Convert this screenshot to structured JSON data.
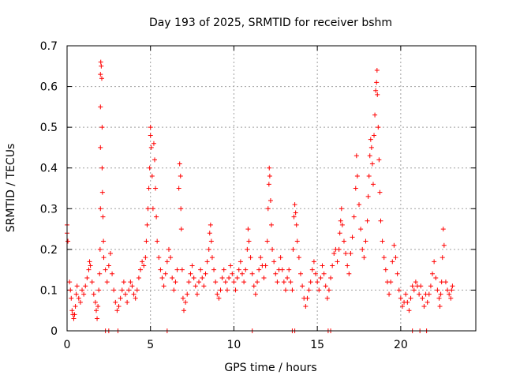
{
  "chart_data": {
    "type": "scatter",
    "title": "Day 193 of 2025, SRMTID for receiver bshm",
    "xlabel": "GPS time / hours",
    "ylabel": "SRMTID / TECUs",
    "xlim": [
      0,
      24.5
    ],
    "ylim": [
      0,
      0.7
    ],
    "x_ticks": [
      0,
      5,
      10,
      15,
      20
    ],
    "x_tick_labels": [
      "0",
      "5",
      "10",
      "15",
      "20"
    ],
    "y_ticks": [
      0,
      0.1,
      0.2,
      0.3,
      0.4,
      0.5,
      0.6,
      0.7
    ],
    "y_tick_labels": [
      "0",
      "0.1",
      "0.2",
      "0.3",
      "0.4",
      "0.5",
      "0.6",
      "0.7"
    ],
    "grid": true,
    "marker": "+",
    "color": "#ff0000",
    "series": [
      {
        "name": "SRMTID",
        "points": [
          [
            0.0,
            0.26
          ],
          [
            0.0,
            0.24
          ],
          [
            0.05,
            0.22
          ],
          [
            0.15,
            0.12
          ],
          [
            0.2,
            0.1
          ],
          [
            0.25,
            0.08
          ],
          [
            0.3,
            0.05
          ],
          [
            0.35,
            0.04
          ],
          [
            0.4,
            0.03
          ],
          [
            0.45,
            0.04
          ],
          [
            0.5,
            0.06
          ],
          [
            0.55,
            0.09
          ],
          [
            0.6,
            0.11
          ],
          [
            0.7,
            0.08
          ],
          [
            0.8,
            0.07
          ],
          [
            0.9,
            0.1
          ],
          [
            1.0,
            0.09
          ],
          [
            1.1,
            0.11
          ],
          [
            1.2,
            0.13
          ],
          [
            1.3,
            0.15
          ],
          [
            1.35,
            0.17
          ],
          [
            1.4,
            0.16
          ],
          [
            1.5,
            0.12
          ],
          [
            1.6,
            0.09
          ],
          [
            1.7,
            0.07
          ],
          [
            1.75,
            0.05
          ],
          [
            1.8,
            0.03
          ],
          [
            1.85,
            0.06
          ],
          [
            1.9,
            0.1
          ],
          [
            1.95,
            0.14
          ],
          [
            1.98,
            0.2
          ],
          [
            2.0,
            0.3
          ],
          [
            2.0,
            0.45
          ],
          [
            2.0,
            0.55
          ],
          [
            2.0,
            0.63
          ],
          [
            2.02,
            0.66
          ],
          [
            2.05,
            0.65
          ],
          [
            2.08,
            0.62
          ],
          [
            2.1,
            0.5
          ],
          [
            2.1,
            0.4
          ],
          [
            2.12,
            0.34
          ],
          [
            2.15,
            0.28
          ],
          [
            2.18,
            0.22
          ],
          [
            2.2,
            0.18
          ],
          [
            2.3,
            0.15
          ],
          [
            2.4,
            0.12
          ],
          [
            2.5,
            0.16
          ],
          [
            2.6,
            0.19
          ],
          [
            2.7,
            0.14
          ],
          [
            2.8,
            0.1
          ],
          [
            2.9,
            0.07
          ],
          [
            3.0,
            0.05
          ],
          [
            3.1,
            0.06
          ],
          [
            3.2,
            0.08
          ],
          [
            3.3,
            0.1
          ],
          [
            3.4,
            0.12
          ],
          [
            3.5,
            0.09
          ],
          [
            3.6,
            0.07
          ],
          [
            3.7,
            0.1
          ],
          [
            3.8,
            0.12
          ],
          [
            3.9,
            0.11
          ],
          [
            4.0,
            0.09
          ],
          [
            4.1,
            0.08
          ],
          [
            4.2,
            0.1
          ],
          [
            4.3,
            0.13
          ],
          [
            4.4,
            0.15
          ],
          [
            4.5,
            0.17
          ],
          [
            4.6,
            0.16
          ],
          [
            4.7,
            0.18
          ],
          [
            4.75,
            0.22
          ],
          [
            4.8,
            0.26
          ],
          [
            4.85,
            0.3
          ],
          [
            4.9,
            0.35
          ],
          [
            4.95,
            0.4
          ],
          [
            5.0,
            0.48
          ],
          [
            5.0,
            0.5
          ],
          [
            5.05,
            0.45
          ],
          [
            5.1,
            0.38
          ],
          [
            5.15,
            0.3
          ],
          [
            5.2,
            0.46
          ],
          [
            5.25,
            0.42
          ],
          [
            5.3,
            0.35
          ],
          [
            5.35,
            0.28
          ],
          [
            5.4,
            0.22
          ],
          [
            5.5,
            0.18
          ],
          [
            5.6,
            0.15
          ],
          [
            5.7,
            0.13
          ],
          [
            5.8,
            0.11
          ],
          [
            5.9,
            0.14
          ],
          [
            6.0,
            0.17
          ],
          [
            6.1,
            0.2
          ],
          [
            6.2,
            0.18
          ],
          [
            6.3,
            0.13
          ],
          [
            6.4,
            0.1
          ],
          [
            6.5,
            0.12
          ],
          [
            6.6,
            0.15
          ],
          [
            6.7,
            0.35
          ],
          [
            6.75,
            0.41
          ],
          [
            6.8,
            0.38
          ],
          [
            6.82,
            0.3
          ],
          [
            6.85,
            0.25
          ],
          [
            6.9,
            0.15
          ],
          [
            6.95,
            0.08
          ],
          [
            7.0,
            0.05
          ],
          [
            7.1,
            0.07
          ],
          [
            7.2,
            0.09
          ],
          [
            7.3,
            0.12
          ],
          [
            7.4,
            0.14
          ],
          [
            7.5,
            0.16
          ],
          [
            7.6,
            0.13
          ],
          [
            7.7,
            0.11
          ],
          [
            7.8,
            0.09
          ],
          [
            7.9,
            0.12
          ],
          [
            8.0,
            0.15
          ],
          [
            8.1,
            0.13
          ],
          [
            8.2,
            0.11
          ],
          [
            8.3,
            0.14
          ],
          [
            8.4,
            0.17
          ],
          [
            8.5,
            0.2
          ],
          [
            8.55,
            0.24
          ],
          [
            8.6,
            0.26
          ],
          [
            8.65,
            0.22
          ],
          [
            8.7,
            0.18
          ],
          [
            8.8,
            0.15
          ],
          [
            8.9,
            0.12
          ],
          [
            9.0,
            0.09
          ],
          [
            9.1,
            0.08
          ],
          [
            9.2,
            0.1
          ],
          [
            9.3,
            0.13
          ],
          [
            9.4,
            0.15
          ],
          [
            9.5,
            0.12
          ],
          [
            9.6,
            0.1
          ],
          [
            9.7,
            0.13
          ],
          [
            9.8,
            0.16
          ],
          [
            9.9,
            0.14
          ],
          [
            10.0,
            0.12
          ],
          [
            10.1,
            0.1
          ],
          [
            10.2,
            0.13
          ],
          [
            10.3,
            0.15
          ],
          [
            10.4,
            0.17
          ],
          [
            10.5,
            0.14
          ],
          [
            10.6,
            0.12
          ],
          [
            10.7,
            0.15
          ],
          [
            10.8,
            0.2
          ],
          [
            10.85,
            0.25
          ],
          [
            10.9,
            0.22
          ],
          [
            11.0,
            0.18
          ],
          [
            11.1,
            0.14
          ],
          [
            11.2,
            0.11
          ],
          [
            11.3,
            0.09
          ],
          [
            11.4,
            0.12
          ],
          [
            11.5,
            0.15
          ],
          [
            11.6,
            0.18
          ],
          [
            11.7,
            0.16
          ],
          [
            11.8,
            0.13
          ],
          [
            11.9,
            0.16
          ],
          [
            12.0,
            0.22
          ],
          [
            12.05,
            0.3
          ],
          [
            12.1,
            0.36
          ],
          [
            12.12,
            0.4
          ],
          [
            12.15,
            0.38
          ],
          [
            12.2,
            0.32
          ],
          [
            12.25,
            0.26
          ],
          [
            12.3,
            0.2
          ],
          [
            12.4,
            0.17
          ],
          [
            12.5,
            0.14
          ],
          [
            12.6,
            0.12
          ],
          [
            12.7,
            0.15
          ],
          [
            12.8,
            0.18
          ],
          [
            12.9,
            0.15
          ],
          [
            13.0,
            0.12
          ],
          [
            13.1,
            0.1
          ],
          [
            13.2,
            0.13
          ],
          [
            13.3,
            0.15
          ],
          [
            13.4,
            0.12
          ],
          [
            13.5,
            0.1
          ],
          [
            13.55,
            0.2
          ],
          [
            13.6,
            0.28
          ],
          [
            13.65,
            0.31
          ],
          [
            13.7,
            0.29
          ],
          [
            13.75,
            0.26
          ],
          [
            13.8,
            0.22
          ],
          [
            13.9,
            0.18
          ],
          [
            14.0,
            0.14
          ],
          [
            14.1,
            0.11
          ],
          [
            14.2,
            0.08
          ],
          [
            14.3,
            0.06
          ],
          [
            14.4,
            0.08
          ],
          [
            14.5,
            0.1
          ],
          [
            14.6,
            0.12
          ],
          [
            14.7,
            0.15
          ],
          [
            14.8,
            0.17
          ],
          [
            14.9,
            0.14
          ],
          [
            15.0,
            0.12
          ],
          [
            15.1,
            0.1
          ],
          [
            15.2,
            0.13
          ],
          [
            15.3,
            0.16
          ],
          [
            15.4,
            0.14
          ],
          [
            15.5,
            0.11
          ],
          [
            15.6,
            0.08
          ],
          [
            15.7,
            0.1
          ],
          [
            15.8,
            0.13
          ],
          [
            15.9,
            0.16
          ],
          [
            16.0,
            0.19
          ],
          [
            16.1,
            0.2
          ],
          [
            16.2,
            0.17
          ],
          [
            16.3,
            0.2
          ],
          [
            16.35,
            0.24
          ],
          [
            16.4,
            0.27
          ],
          [
            16.45,
            0.3
          ],
          [
            16.5,
            0.26
          ],
          [
            16.6,
            0.22
          ],
          [
            16.7,
            0.19
          ],
          [
            16.8,
            0.16
          ],
          [
            16.9,
            0.14
          ],
          [
            17.0,
            0.19
          ],
          [
            17.1,
            0.23
          ],
          [
            17.2,
            0.28
          ],
          [
            17.3,
            0.35
          ],
          [
            17.35,
            0.43
          ],
          [
            17.4,
            0.38
          ],
          [
            17.5,
            0.31
          ],
          [
            17.6,
            0.25
          ],
          [
            17.7,
            0.2
          ],
          [
            17.8,
            0.18
          ],
          [
            17.9,
            0.22
          ],
          [
            18.0,
            0.27
          ],
          [
            18.05,
            0.33
          ],
          [
            18.1,
            0.38
          ],
          [
            18.15,
            0.43
          ],
          [
            18.2,
            0.47
          ],
          [
            18.25,
            0.45
          ],
          [
            18.3,
            0.41
          ],
          [
            18.35,
            0.36
          ],
          [
            18.4,
            0.48
          ],
          [
            18.45,
            0.53
          ],
          [
            18.5,
            0.59
          ],
          [
            18.55,
            0.61
          ],
          [
            18.58,
            0.64
          ],
          [
            18.6,
            0.58
          ],
          [
            18.65,
            0.5
          ],
          [
            18.7,
            0.42
          ],
          [
            18.75,
            0.34
          ],
          [
            18.8,
            0.27
          ],
          [
            18.9,
            0.22
          ],
          [
            19.0,
            0.18
          ],
          [
            19.1,
            0.15
          ],
          [
            19.2,
            0.12
          ],
          [
            19.3,
            0.09
          ],
          [
            19.4,
            0.12
          ],
          [
            19.5,
            0.17
          ],
          [
            19.6,
            0.21
          ],
          [
            19.7,
            0.18
          ],
          [
            19.8,
            0.14
          ],
          [
            19.9,
            0.1
          ],
          [
            20.0,
            0.08
          ],
          [
            20.1,
            0.06
          ],
          [
            20.2,
            0.07
          ],
          [
            20.3,
            0.09
          ],
          [
            20.4,
            0.07
          ],
          [
            20.5,
            0.05
          ],
          [
            20.6,
            0.08
          ],
          [
            20.7,
            0.11
          ],
          [
            20.8,
            0.1
          ],
          [
            20.9,
            0.12
          ],
          [
            21.0,
            0.11
          ],
          [
            21.1,
            0.09
          ],
          [
            21.2,
            0.11
          ],
          [
            21.3,
            0.08
          ],
          [
            21.4,
            0.06
          ],
          [
            21.5,
            0.09
          ],
          [
            21.6,
            0.07
          ],
          [
            21.7,
            0.09
          ],
          [
            21.8,
            0.11
          ],
          [
            21.9,
            0.14
          ],
          [
            22.0,
            0.17
          ],
          [
            22.1,
            0.13
          ],
          [
            22.2,
            0.1
          ],
          [
            22.3,
            0.08
          ],
          [
            22.35,
            0.06
          ],
          [
            22.4,
            0.09
          ],
          [
            22.45,
            0.12
          ],
          [
            22.5,
            0.18
          ],
          [
            22.55,
            0.25
          ],
          [
            22.6,
            0.21
          ],
          [
            22.7,
            0.12
          ],
          [
            22.8,
            0.1
          ],
          [
            22.9,
            0.09
          ],
          [
            23.0,
            0.08
          ],
          [
            23.05,
            0.1
          ],
          [
            23.1,
            0.11
          ]
        ]
      }
    ],
    "zero_values_at_x": [
      2.3,
      2.5,
      3.05,
      6.0,
      11.1,
      13.5,
      13.65,
      15.65,
      15.8,
      20.7,
      21.15,
      21.55
    ]
  }
}
